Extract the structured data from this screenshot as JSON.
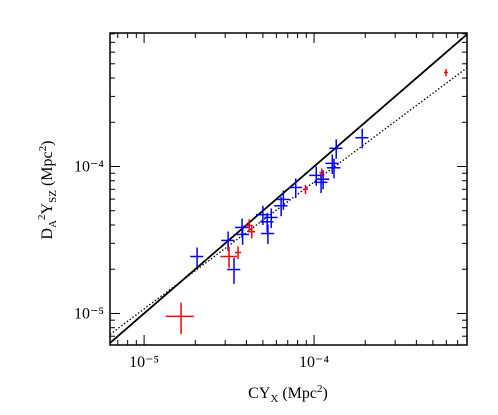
{
  "chart_data": {
    "type": "scatter",
    "xlabel": [
      "CY",
      "X",
      " (Mpc",
      "2",
      ")"
    ],
    "ylabel": [
      "D",
      "A",
      "2",
      "Y",
      "SZ",
      " (Mpc",
      "2",
      ")"
    ],
    "xscale": "log",
    "yscale": "log",
    "xlim": [
      6.3e-06,
      0.000794
    ],
    "ylim": [
      6.1e-06,
      0.00081
    ],
    "xticks": [
      {
        "value": 1e-05,
        "label": "10⁻⁵"
      },
      {
        "value": 0.0001,
        "label": "10⁻⁴"
      }
    ],
    "yticks": [
      {
        "value": 1e-05,
        "label": "10⁻⁵"
      },
      {
        "value": 0.0001,
        "label": "10⁻⁴"
      }
    ],
    "xminorticks": [
      7e-06,
      8e-06,
      9e-06,
      2e-05,
      3e-05,
      4e-05,
      5e-05,
      6e-05,
      7e-05,
      8e-05,
      9e-05,
      0.0002,
      0.0003,
      0.0004,
      0.0005,
      0.0006,
      0.0007
    ],
    "yminorticks": [
      7e-06,
      8e-06,
      9e-06,
      2e-05,
      3e-05,
      4e-05,
      5e-05,
      6e-05,
      7e-05,
      8e-05,
      9e-05,
      0.0002,
      0.0003,
      0.0004,
      0.0005,
      0.0006,
      0.0007,
      0.0008
    ],
    "lines": [
      {
        "style": "solid",
        "color": "#000000",
        "x": [
          6.3e-06,
          0.000794
        ],
        "y": [
          6.3e-06,
          0.000794
        ]
      },
      {
        "style": "dotted",
        "color": "#000000",
        "x": [
          6.3e-06,
          0.000794
        ],
        "y": [
          7.2e-06,
          0.00047
        ]
      }
    ],
    "series": [
      {
        "color": "#0000ff",
        "x": [
          2.05e-05,
          3.12e-05,
          3.38e-05,
          3.77e-05,
          3.8e-05,
          5e-05,
          5.3e-05,
          5.35e-05,
          5.6e-05,
          6.4e-05,
          6.6e-05,
          7.8e-05,
          0.000103,
          0.00011,
          0.000113,
          0.000128,
          0.000131,
          0.000135,
          0.000192
        ],
        "values": [
          2.44e-05,
          3.14e-05,
          1.99e-05,
          3.85e-05,
          3.45e-05,
          4.7e-05,
          4.2e-05,
          3.5e-05,
          4.5e-05,
          5.4e-05,
          5.97e-05,
          7.2e-05,
          8.7e-05,
          7.8e-05,
          8.2e-05,
          0.000105,
          9.8e-05,
          0.000133,
          0.000157
        ],
        "xerr": [
          1.8e-06,
          2.8e-06,
          3e-06,
          3.4e-06,
          3.4e-06,
          4.5e-06,
          4.8e-06,
          4.8e-06,
          5e-06,
          5.8e-06,
          5.9e-06,
          7e-06,
          9.3e-06,
          9.9e-06,
          1e-05,
          1.15e-05,
          1.2e-05,
          1.2e-05,
          1.7e-05
        ],
        "yerr": [
          3.7e-06,
          4.7e-06,
          4e-06,
          5.8e-06,
          5.2e-06,
          7e-06,
          6.3e-06,
          5.3e-06,
          6.8e-06,
          8.1e-06,
          9e-06,
          1.1e-05,
          1.3e-05,
          1.2e-05,
          1.2e-05,
          1.6e-05,
          1.5e-05,
          2e-05,
          2.4e-05
        ]
      },
      {
        "color": "#ff0000",
        "x": [
          1.65e-05,
          3.16e-05,
          3.57e-05,
          4.15e-05,
          4.3e-05,
          8.9e-05,
          0.000111,
          0.000597
        ],
        "values": [
          9.55e-06,
          2.44e-05,
          2.6e-05,
          3.97e-05,
          3.6e-05,
          7e-05,
          9.1e-05,
          0.000436
        ],
        "xerr": [
          3.1e-06,
          3.5e-06,
          1.5e-06,
          2e-06,
          2e-06,
          3e-06,
          3.5e-06,
          1.5e-05
        ],
        "yerr": [
          2.3e-06,
          4e-06,
          2.6e-06,
          4e-06,
          3.6e-06,
          5e-06,
          6e-06,
          2.5e-05
        ]
      }
    ]
  }
}
